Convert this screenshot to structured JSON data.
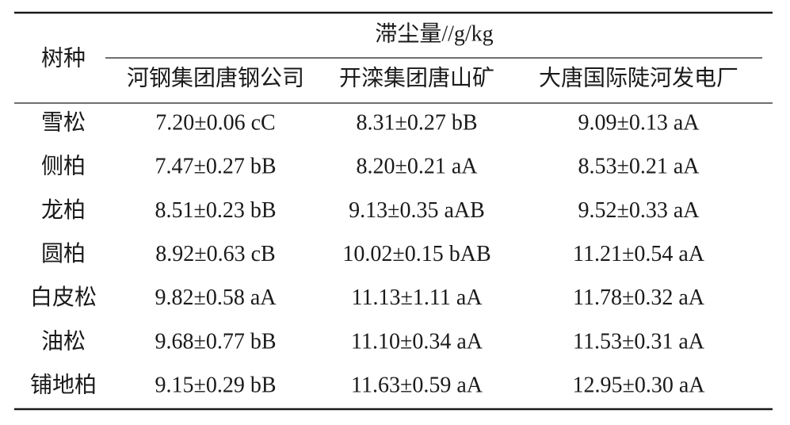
{
  "table": {
    "corner": "树种",
    "group": "滞尘量//g/kg",
    "columns": [
      "河钢集团唐钢公司",
      "开滦集团唐山矿",
      "大唐国际陡河发电厂"
    ],
    "rows": [
      [
        "雪松",
        "7.20±0.06 cC",
        "8.31±0.27 bB",
        "9.09±0.13 aA"
      ],
      [
        "侧柏",
        "7.47±0.27 bB",
        "8.20±0.21 aA",
        "8.53±0.21 aA"
      ],
      [
        "龙柏",
        "8.51±0.23 bB",
        "9.13±0.35 aAB",
        "9.52±0.33 aA"
      ],
      [
        "圆柏",
        "8.92±0.63 cB",
        "10.02±0.15 bAB",
        "11.21±0.54 aA"
      ],
      [
        "白皮松",
        "9.82±0.58 aA",
        "11.13±1.11 aA",
        "11.78±0.32 aA"
      ],
      [
        "油松",
        "9.68±0.77 bB",
        "11.10±0.34 aA",
        "11.53±0.31 aA"
      ],
      [
        "铺地柏",
        "9.15±0.29 bB",
        "11.63±0.59 aA",
        "12.95±0.30 aA"
      ]
    ]
  }
}
